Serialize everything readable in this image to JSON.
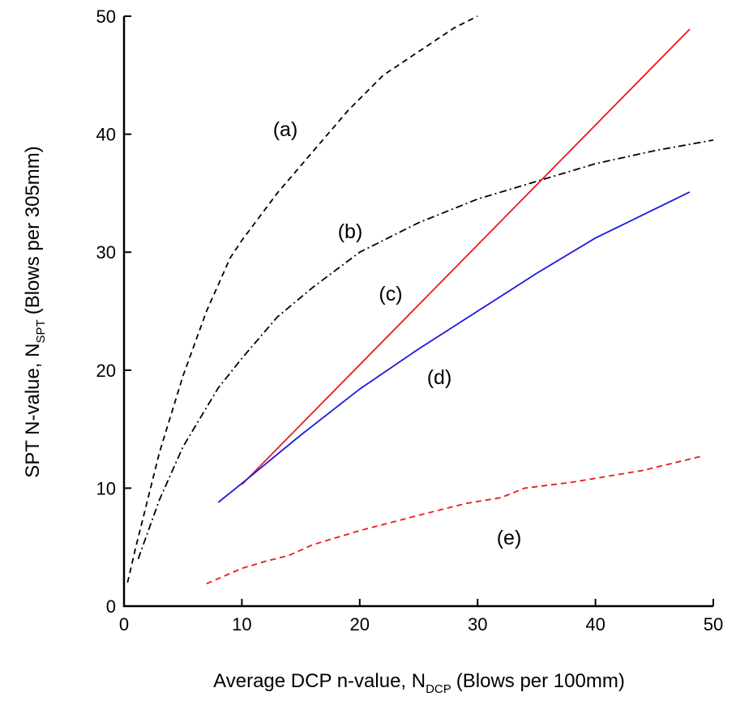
{
  "chart_data": {
    "type": "line",
    "x_label": "Average DCP n-value, N",
    "x_label_sub": "DCP",
    "x_label_rest": "(Blows per 100mm)",
    "y_label": "SPT N-value, N",
    "y_label_sub": "SPT",
    "y_label_rest": "(Blows per 305mm)",
    "xlim": [
      0,
      50
    ],
    "ylim": [
      0,
      50
    ],
    "xticks": [
      0,
      10,
      20,
      30,
      40,
      50
    ],
    "yticks": [
      0,
      10,
      20,
      30,
      40,
      50
    ],
    "series": [
      {
        "name": "(a)",
        "color": "#000000",
        "dash": "dashed",
        "x": [
          0.3,
          1,
          2,
          3,
          5,
          7,
          9,
          10,
          13,
          16,
          19,
          22,
          25,
          28,
          30
        ],
        "values": [
          2,
          5,
          9,
          13,
          19.5,
          25,
          29.5,
          31,
          35,
          38.5,
          42,
          45,
          47,
          49,
          50
        ]
      },
      {
        "name": "(b)",
        "color": "#000000",
        "dash": "dashdot",
        "x": [
          1.2,
          3,
          5,
          8,
          10,
          13,
          16,
          20,
          25,
          30,
          35,
          40,
          45,
          50
        ],
        "values": [
          4,
          9,
          13.5,
          18.5,
          21,
          24.5,
          27,
          30,
          32.5,
          34.5,
          36,
          37.5,
          38.6,
          39.5
        ]
      },
      {
        "name": "(c)",
        "color": "#e8191e",
        "dash": "solid",
        "x": [
          10,
          48
        ],
        "values": [
          10.3,
          48.9
        ]
      },
      {
        "name": "(d)",
        "color": "#1a1ae0",
        "dash": "solid",
        "x": [
          8,
          10,
          15,
          20,
          25,
          30,
          35,
          40,
          48
        ],
        "values": [
          8.8,
          10.4,
          14.5,
          18.4,
          21.8,
          25,
          28.2,
          31.2,
          35.1
        ]
      },
      {
        "name": "(e)",
        "color": "#e8191e",
        "dash": "dashed",
        "x": [
          7,
          10,
          12,
          14,
          16,
          20,
          25,
          29,
          32,
          34,
          38,
          44,
          49
        ],
        "values": [
          1.9,
          3.2,
          3.8,
          4.3,
          5.2,
          6.4,
          7.7,
          8.7,
          9.2,
          10,
          10.5,
          11.5,
          12.7
        ]
      }
    ]
  }
}
